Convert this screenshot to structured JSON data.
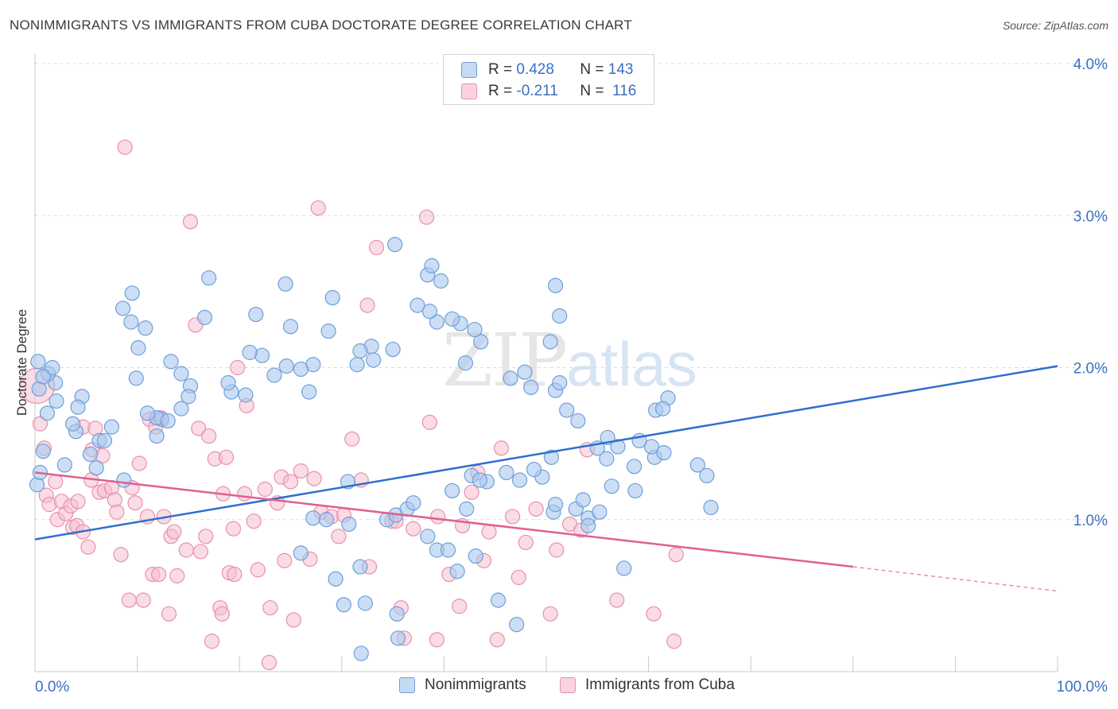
{
  "header": {
    "title": "NONIMMIGRANTS VS IMMIGRANTS FROM CUBA DOCTORATE DEGREE CORRELATION CHART",
    "source": "Source: ZipAtlas.com"
  },
  "watermark": {
    "zip": "ZIP",
    "atlas": "atlas"
  },
  "legend_top": {
    "rows": [
      {
        "r_label": "R =",
        "r_value": "0.428",
        "n_label": "N =",
        "n_value": "143"
      },
      {
        "r_label": "R =",
        "r_value": "-0.211",
        "n_label": "N =",
        "n_value": "116"
      }
    ]
  },
  "colors": {
    "blue_fill": "#aac8ee",
    "blue_stroke": "#6f9fd8",
    "blue_line": "#2e6fcf",
    "pink_fill": "#f6bfd0",
    "pink_stroke": "#e890ad",
    "pink_line": "#e0608e",
    "tick_label": "#3a6fc4",
    "grid": "#dcdcdc"
  },
  "chart_data": {
    "type": "scatter",
    "title": "NONIMMIGRANTS VS IMMIGRANTS FROM CUBA DOCTORATE DEGREE CORRELATION CHART",
    "xlabel": "",
    "ylabel": "Doctorate Degree",
    "xlim": [
      0,
      100
    ],
    "ylim": [
      0,
      4.0
    ],
    "x_tick_labels": [
      "0.0%",
      "100.0%"
    ],
    "y_tick_labels": [
      "1.0%",
      "2.0%",
      "3.0%",
      "4.0%"
    ],
    "y_ticks": [
      1.0,
      2.0,
      3.0,
      4.0
    ],
    "grid": true,
    "legend": "bottom-center",
    "series": [
      {
        "name": "Nonimmigrants",
        "R": 0.428,
        "N": 143,
        "trend": {
          "x0": 0,
          "y0": 0.87,
          "x1": 100,
          "y1": 2.01
        },
        "points": [
          [
            35.4,
            0.38
          ],
          [
            35.5,
            0.22
          ],
          [
            31.9,
            0.12
          ],
          [
            30.2,
            0.44
          ],
          [
            32.3,
            0.45
          ],
          [
            26.0,
            0.78
          ],
          [
            29.4,
            0.61
          ],
          [
            27.2,
            1.01
          ],
          [
            34.4,
            1.0
          ],
          [
            30.7,
            0.97
          ],
          [
            28.5,
            1.0
          ],
          [
            31.8,
            0.69
          ],
          [
            30.6,
            1.25
          ],
          [
            38.4,
            0.89
          ],
          [
            39.3,
            0.8
          ],
          [
            35.3,
            1.03
          ],
          [
            36.4,
            1.07
          ],
          [
            37.0,
            1.11
          ],
          [
            41.3,
            0.66
          ],
          [
            43.1,
            0.76
          ],
          [
            42.2,
            1.07
          ],
          [
            45.3,
            0.47
          ],
          [
            46.1,
            1.31
          ],
          [
            40.8,
            1.19
          ],
          [
            42.7,
            1.29
          ],
          [
            44.2,
            1.25
          ],
          [
            40.4,
            0.8
          ],
          [
            43.5,
            1.26
          ],
          [
            47.1,
            0.31
          ],
          [
            47.4,
            1.26
          ],
          [
            50.7,
            1.05
          ],
          [
            49.6,
            1.28
          ],
          [
            54.1,
            1.01
          ],
          [
            50.9,
            1.1
          ],
          [
            55.9,
            1.4
          ],
          [
            55.2,
            1.05
          ],
          [
            50.5,
            1.41
          ],
          [
            48.8,
            1.33
          ],
          [
            54.1,
            0.96
          ],
          [
            52.9,
            1.07
          ],
          [
            53.6,
            1.13
          ],
          [
            57.6,
            0.68
          ],
          [
            56.4,
            1.22
          ],
          [
            58.7,
            1.19
          ],
          [
            60.6,
            1.41
          ],
          [
            58.6,
            1.35
          ],
          [
            56.0,
            1.54
          ],
          [
            60.3,
            1.48
          ],
          [
            61.9,
            1.8
          ],
          [
            60.7,
            1.72
          ],
          [
            61.4,
            1.73
          ],
          [
            66.1,
            1.08
          ],
          [
            65.7,
            1.29
          ],
          [
            64.8,
            1.36
          ],
          [
            61.5,
            1.44
          ],
          [
            59.1,
            1.52
          ],
          [
            55.0,
            1.47
          ],
          [
            57.0,
            1.48
          ],
          [
            53.1,
            1.65
          ],
          [
            52.0,
            1.72
          ],
          [
            50.9,
            1.85
          ],
          [
            51.3,
            1.9
          ],
          [
            48.5,
            1.87
          ],
          [
            46.5,
            1.93
          ],
          [
            47.9,
            1.97
          ],
          [
            50.4,
            2.17
          ],
          [
            51.3,
            2.34
          ],
          [
            50.9,
            2.54
          ],
          [
            43.6,
            2.17
          ],
          [
            42.1,
            2.03
          ],
          [
            39.3,
            2.3
          ],
          [
            38.4,
            2.61
          ],
          [
            43.0,
            2.25
          ],
          [
            41.6,
            2.29
          ],
          [
            39.7,
            2.57
          ],
          [
            38.6,
            2.37
          ],
          [
            40.8,
            2.32
          ],
          [
            37.4,
            2.41
          ],
          [
            38.8,
            2.67
          ],
          [
            35.2,
            2.81
          ],
          [
            32.9,
            2.14
          ],
          [
            31.8,
            2.11
          ],
          [
            35.0,
            2.12
          ],
          [
            33.1,
            2.05
          ],
          [
            29.1,
            2.46
          ],
          [
            31.5,
            2.02
          ],
          [
            27.2,
            2.02
          ],
          [
            28.7,
            2.24
          ],
          [
            26.8,
            1.84
          ],
          [
            26.0,
            1.99
          ],
          [
            25.0,
            2.27
          ],
          [
            23.4,
            1.95
          ],
          [
            22.2,
            2.08
          ],
          [
            21.6,
            2.35
          ],
          [
            21.0,
            2.1
          ],
          [
            24.5,
            2.55
          ],
          [
            24.6,
            2.01
          ],
          [
            20.6,
            1.82
          ],
          [
            19.2,
            1.84
          ],
          [
            18.9,
            1.9
          ],
          [
            16.6,
            2.33
          ],
          [
            17.0,
            2.59
          ],
          [
            15.2,
            1.88
          ],
          [
            15.0,
            1.81
          ],
          [
            14.3,
            1.96
          ],
          [
            13.3,
            2.04
          ],
          [
            14.3,
            1.73
          ],
          [
            12.4,
            1.66
          ],
          [
            11.9,
            1.67
          ],
          [
            13.0,
            1.65
          ],
          [
            10.8,
            2.26
          ],
          [
            9.5,
            2.49
          ],
          [
            10.1,
            2.13
          ],
          [
            8.6,
            2.39
          ],
          [
            9.4,
            2.3
          ],
          [
            9.9,
            1.93
          ],
          [
            11.0,
            1.7
          ],
          [
            11.9,
            1.55
          ],
          [
            8.7,
            1.26
          ],
          [
            7.5,
            1.61
          ],
          [
            6.3,
            1.52
          ],
          [
            6.8,
            1.52
          ],
          [
            6.0,
            1.34
          ],
          [
            4.6,
            1.81
          ],
          [
            4.0,
            1.58
          ],
          [
            5.4,
            1.43
          ],
          [
            2.9,
            1.36
          ],
          [
            3.7,
            1.63
          ],
          [
            4.2,
            1.74
          ],
          [
            2.1,
            1.78
          ],
          [
            2.0,
            1.9
          ],
          [
            1.3,
            1.96
          ],
          [
            1.7,
            2.0
          ],
          [
            0.4,
            1.86
          ],
          [
            0.8,
            1.94
          ],
          [
            0.3,
            2.04
          ],
          [
            1.2,
            1.7
          ],
          [
            0.8,
            1.45
          ],
          [
            0.2,
            1.23
          ],
          [
            0.5,
            1.31
          ]
        ]
      },
      {
        "name": "Immigrants from Cuba",
        "R": -0.211,
        "N": 116,
        "trend": {
          "x0": 0,
          "y0": 1.31,
          "x1": 80,
          "y1": 0.69
        },
        "trend_dashed": {
          "x0": 80,
          "y0": 0.69,
          "x1": 100,
          "y1": 0.53
        },
        "points": [
          [
            0.2,
            1.88
          ],
          [
            0.5,
            1.63
          ],
          [
            0.9,
            1.47
          ],
          [
            1.1,
            1.16
          ],
          [
            1.4,
            1.1
          ],
          [
            2.0,
            1.25
          ],
          [
            2.6,
            1.12
          ],
          [
            2.2,
            1.0
          ],
          [
            3.0,
            1.04
          ],
          [
            3.5,
            1.09
          ],
          [
            3.7,
            0.95
          ],
          [
            4.1,
            0.96
          ],
          [
            4.2,
            1.12
          ],
          [
            4.7,
            0.92
          ],
          [
            5.2,
            0.82
          ],
          [
            4.7,
            1.61
          ],
          [
            5.5,
            1.26
          ],
          [
            5.6,
            1.46
          ],
          [
            5.9,
            1.6
          ],
          [
            6.3,
            1.18
          ],
          [
            6.6,
            1.42
          ],
          [
            6.8,
            1.19
          ],
          [
            7.5,
            1.21
          ],
          [
            7.8,
            1.13
          ],
          [
            8.0,
            1.05
          ],
          [
            8.4,
            0.77
          ],
          [
            8.8,
            3.45
          ],
          [
            9.2,
            0.47
          ],
          [
            9.5,
            1.21
          ],
          [
            9.8,
            1.11
          ],
          [
            10.2,
            1.37
          ],
          [
            10.6,
            0.47
          ],
          [
            11.0,
            1.02
          ],
          [
            11.2,
            1.66
          ],
          [
            11.5,
            0.64
          ],
          [
            11.8,
            1.61
          ],
          [
            12.1,
            0.64
          ],
          [
            12.3,
            1.67
          ],
          [
            12.6,
            1.02
          ],
          [
            13.1,
            0.38
          ],
          [
            13.3,
            0.89
          ],
          [
            13.6,
            0.92
          ],
          [
            13.9,
            0.63
          ],
          [
            14.8,
            0.8
          ],
          [
            15.2,
            2.96
          ],
          [
            15.7,
            2.28
          ],
          [
            16.0,
            1.6
          ],
          [
            16.2,
            0.79
          ],
          [
            16.7,
            0.89
          ],
          [
            17.0,
            1.55
          ],
          [
            17.3,
            0.2
          ],
          [
            17.6,
            1.4
          ],
          [
            18.1,
            0.42
          ],
          [
            18.3,
            0.38
          ],
          [
            18.4,
            1.17
          ],
          [
            18.7,
            1.41
          ],
          [
            19.0,
            0.65
          ],
          [
            19.4,
            0.94
          ],
          [
            19.5,
            0.64
          ],
          [
            19.8,
            2.0
          ],
          [
            20.5,
            1.17
          ],
          [
            20.7,
            1.75
          ],
          [
            21.4,
            0.99
          ],
          [
            21.8,
            0.67
          ],
          [
            22.5,
            1.2
          ],
          [
            22.9,
            0.06
          ],
          [
            23.0,
            0.42
          ],
          [
            23.7,
            1.11
          ],
          [
            24.1,
            1.28
          ],
          [
            24.4,
            0.73
          ],
          [
            25.0,
            1.25
          ],
          [
            25.3,
            0.34
          ],
          [
            26.0,
            1.32
          ],
          [
            26.9,
            0.74
          ],
          [
            27.3,
            1.27
          ],
          [
            27.7,
            3.05
          ],
          [
            28.0,
            1.05
          ],
          [
            29.0,
            1.02
          ],
          [
            29.7,
            0.89
          ],
          [
            30.2,
            1.03
          ],
          [
            31.0,
            1.53
          ],
          [
            31.9,
            1.26
          ],
          [
            32.5,
            2.41
          ],
          [
            32.7,
            0.69
          ],
          [
            33.4,
            2.79
          ],
          [
            34.9,
            0.99
          ],
          [
            35.3,
            0.99
          ],
          [
            35.8,
            0.42
          ],
          [
            36.1,
            0.22
          ],
          [
            37.0,
            0.94
          ],
          [
            38.3,
            2.99
          ],
          [
            38.6,
            1.64
          ],
          [
            39.3,
            0.21
          ],
          [
            39.4,
            1.02
          ],
          [
            40.5,
            0.64
          ],
          [
            41.5,
            0.43
          ],
          [
            41.8,
            0.96
          ],
          [
            42.7,
            1.18
          ],
          [
            43.3,
            1.31
          ],
          [
            43.9,
            0.73
          ],
          [
            45.2,
            0.21
          ],
          [
            45.6,
            1.47
          ],
          [
            46.7,
            1.02
          ],
          [
            47.3,
            0.62
          ],
          [
            49.0,
            1.07
          ],
          [
            50.4,
            0.38
          ],
          [
            51.0,
            0.8
          ],
          [
            52.3,
            0.97
          ],
          [
            54.0,
            1.46
          ],
          [
            56.9,
            0.47
          ],
          [
            60.5,
            0.38
          ],
          [
            62.5,
            0.2
          ],
          [
            62.7,
            0.77
          ],
          [
            48.0,
            0.85
          ],
          [
            44.4,
            0.92
          ],
          [
            53.4,
            0.93
          ]
        ]
      }
    ]
  },
  "bottom_legend": {
    "items": [
      {
        "label": "Nonimmigrants"
      },
      {
        "label": "Immigrants from Cuba"
      }
    ]
  }
}
